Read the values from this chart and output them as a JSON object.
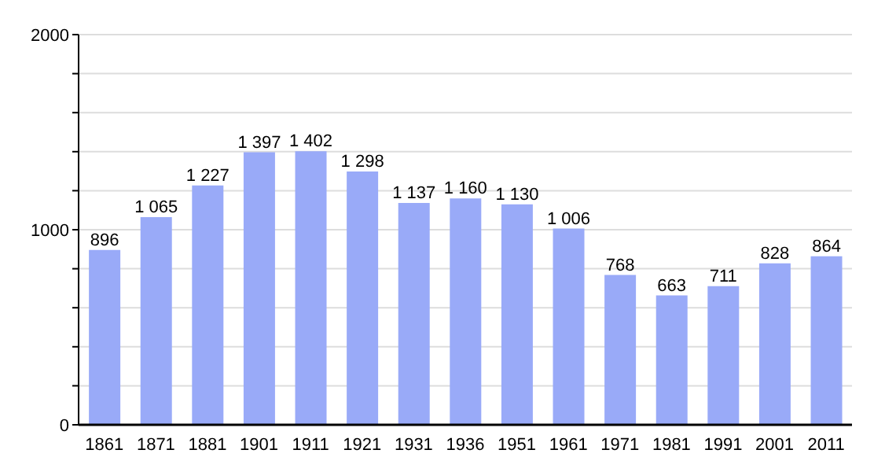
{
  "chart_data": {
    "type": "bar",
    "categories": [
      "1861",
      "1871",
      "1881",
      "1901",
      "1911",
      "1921",
      "1931",
      "1936",
      "1951",
      "1961",
      "1971",
      "1981",
      "1991",
      "2001",
      "2011"
    ],
    "values": [
      896,
      1065,
      1227,
      1397,
      1402,
      1298,
      1137,
      1160,
      1130,
      1006,
      768,
      663,
      711,
      828,
      864
    ],
    "value_labels": [
      "896",
      "1 065",
      "1 227",
      "1 397",
      "1 402",
      "1 298",
      "1 137",
      "1 160",
      "1 130",
      "1 006",
      "768",
      "663",
      "711",
      "828",
      "864"
    ],
    "color": "#99aaf8",
    "ylim": [
      0,
      2000
    ],
    "yticks": [
      0,
      {
        "value": 200,
        "label": null
      },
      {
        "value": 400,
        "label": null
      },
      {
        "value": 600,
        "label": null
      },
      {
        "value": 800,
        "label": null
      },
      1000,
      {
        "value": 1200,
        "label": null
      },
      {
        "value": 1400,
        "label": null
      },
      {
        "value": 1600,
        "label": null
      },
      {
        "value": 1800,
        "label": null
      },
      2000
    ],
    "grid": "y"
  }
}
